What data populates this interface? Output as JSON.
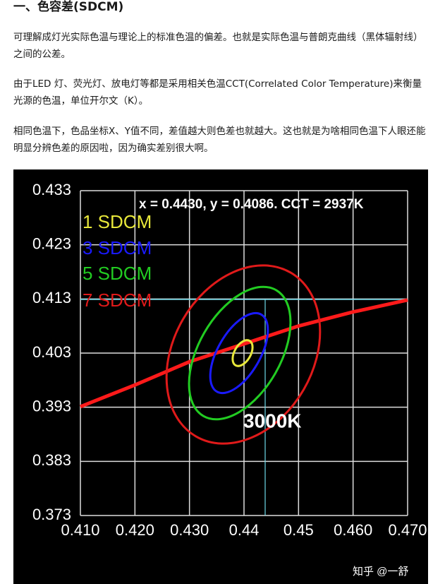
{
  "heading": "一、色容差(SDCM)",
  "paragraphs": [
    "可理解成灯光实际色温与理论上的标准色温的偏差。也就是实际色温与普朗克曲线（黑体辐射线）之间的公差。",
    "由于LED 灯、荧光灯、放电灯等都是采用相关色温CCT(Correlated Color Temperature)来衡量光源的色温，单位开尔文（K）。",
    "相同色温下，色品坐标X、Y值不同，差值越大则色差也就越大。这也就是为啥相同色温下人眼还能明显分辨色差的原因啦，因为确实差别很大啊。"
  ],
  "figure": {
    "chart_data": {
      "type": "line",
      "annotation": "x = 0.4430, y = 0.4086. CCT = 2937K",
      "curve_label": "3000K",
      "x": [
        0.41,
        0.42,
        0.43,
        0.44,
        0.45,
        0.46,
        0.47
      ],
      "series": [
        {
          "color": "#ff1a1a",
          "values": [
            0.3931,
            0.3971,
            0.4014,
            0.4047,
            0.408,
            0.4106,
            0.4128
          ]
        }
      ],
      "ellipses": [
        {
          "name": "1 SDCM",
          "color": "#e8e83a"
        },
        {
          "name": "3 SDCM",
          "color": "#1a1aff"
        },
        {
          "name": "5 SDCM",
          "color": "#22cc22"
        },
        {
          "name": "7 SDCM",
          "color": "#e01a1a"
        }
      ],
      "xlim": [
        0.41,
        0.47
      ],
      "xticks": [
        {
          "value": 0.41,
          "label": "0.410"
        },
        {
          "value": 0.42,
          "label": "0.420"
        },
        {
          "value": 0.43,
          "label": "0.430"
        },
        0.44,
        0.45,
        {
          "value": 0.46,
          "label": "0.460"
        },
        {
          "value": 0.47,
          "label": "0.470"
        }
      ],
      "ylim": [
        0.373,
        0.433
      ],
      "yticks": [
        0.373,
        0.383,
        0.393,
        0.403,
        0.413,
        0.423,
        0.433
      ],
      "grid": true
    },
    "watermark": "知乎 @一舒"
  }
}
